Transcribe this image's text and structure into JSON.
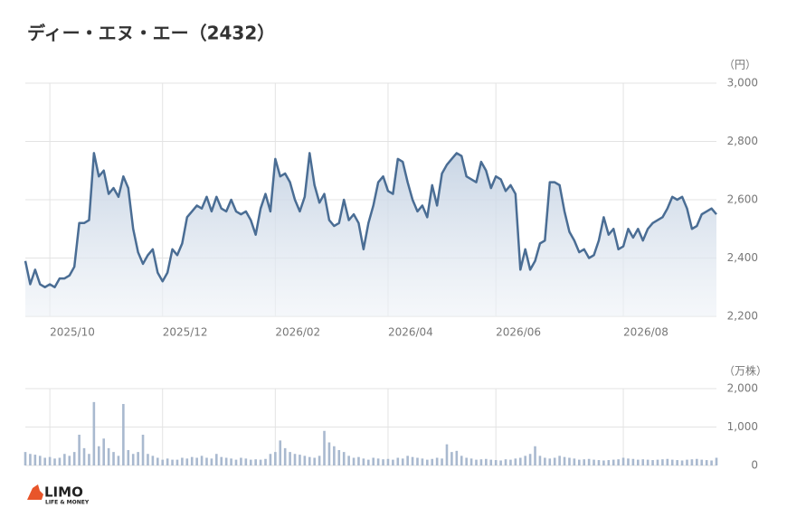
{
  "chart_data": [
    {
      "type": "line",
      "title": "ディー・エヌ・エー（2432）",
      "unit": "（円）",
      "color": "#4a6d94",
      "categories": [
        null,
        null,
        null,
        null,
        null,
        "2025/10",
        null,
        null,
        null,
        null,
        null,
        null,
        null,
        null,
        null,
        null,
        null,
        null,
        null,
        null,
        null,
        null,
        null,
        null,
        null,
        null,
        null,
        null,
        "2025/12",
        null,
        null,
        null,
        null,
        null,
        null,
        null,
        null,
        null,
        null,
        null,
        null,
        null,
        null,
        null,
        null,
        null,
        null,
        null,
        null,
        null,
        null,
        "2026/02",
        null,
        null,
        null,
        null,
        null,
        null,
        null,
        null,
        null,
        null,
        null,
        null,
        null,
        null,
        null,
        null,
        null,
        null,
        null,
        null,
        null,
        null,
        "2026/04",
        null,
        null,
        null,
        null,
        null,
        null,
        null,
        null,
        null,
        null,
        null,
        null,
        null,
        null,
        null,
        null,
        null,
        null,
        null,
        null,
        null,
        "2026/06",
        null,
        null,
        null,
        null,
        null,
        null,
        null,
        null,
        null,
        null,
        null,
        null,
        null,
        null,
        null,
        null,
        null,
        null,
        null,
        null,
        null,
        null,
        null,
        null,
        null,
        "2026/08",
        null,
        null,
        null,
        null,
        null,
        null,
        null,
        null,
        null,
        null,
        null,
        null,
        null,
        null,
        null,
        null,
        null,
        null,
        null
      ],
      "values": [
        2390,
        2310,
        2360,
        2310,
        2300,
        2310,
        2300,
        2330,
        2330,
        2340,
        2370,
        2520,
        2520,
        2530,
        2760,
        2680,
        2700,
        2620,
        2640,
        2610,
        2680,
        2640,
        2500,
        2420,
        2380,
        2410,
        2430,
        2350,
        2320,
        2350,
        2430,
        2410,
        2450,
        2540,
        2560,
        2580,
        2570,
        2610,
        2560,
        2610,
        2570,
        2560,
        2600,
        2560,
        2550,
        2560,
        2530,
        2480,
        2570,
        2620,
        2560,
        2740,
        2680,
        2690,
        2660,
        2600,
        2560,
        2610,
        2760,
        2650,
        2590,
        2620,
        2530,
        2510,
        2520,
        2600,
        2530,
        2550,
        2520,
        2430,
        2520,
        2580,
        2660,
        2680,
        2630,
        2620,
        2740,
        2730,
        2660,
        2600,
        2560,
        2580,
        2540,
        2650,
        2580,
        2690,
        2720,
        2740,
        2760,
        2750,
        2680,
        2670,
        2660,
        2730,
        2700,
        2640,
        2680,
        2670,
        2630,
        2650,
        2620,
        2360,
        2430,
        2360,
        2390,
        2450,
        2460,
        2660,
        2660,
        2650,
        2560,
        2490,
        2460,
        2420,
        2430,
        2400,
        2410,
        2460,
        2540,
        2480,
        2500,
        2430,
        2440,
        2500,
        2470,
        2500,
        2460,
        2500,
        2520,
        2530,
        2540,
        2570,
        2610,
        2600,
        2610,
        2570,
        2500,
        2510,
        2550,
        2560,
        2570,
        2550
      ],
      "ylim": [
        2200,
        3000
      ],
      "yticks": [
        {
          "value": 2200,
          "label": "2,200"
        },
        {
          "value": 2400,
          "label": "2,400"
        },
        {
          "value": 2600,
          "label": "2,600"
        },
        {
          "value": 2800,
          "label": "2,800"
        },
        {
          "value": 3000,
          "label": "3,000"
        }
      ],
      "grid": true
    },
    {
      "type": "bar",
      "unit": "（万株）",
      "color": "#a9b9cf",
      "values": [
        350,
        300,
        280,
        250,
        200,
        220,
        180,
        200,
        300,
        250,
        350,
        800,
        450,
        300,
        1650,
        500,
        700,
        450,
        350,
        250,
        1600,
        400,
        300,
        350,
        800,
        300,
        250,
        200,
        150,
        180,
        150,
        150,
        200,
        180,
        220,
        200,
        250,
        200,
        180,
        300,
        220,
        200,
        180,
        150,
        200,
        180,
        150,
        160,
        150,
        170,
        300,
        350,
        650,
        450,
        350,
        300,
        280,
        250,
        220,
        200,
        250,
        900,
        600,
        500,
        400,
        350,
        250,
        200,
        220,
        180,
        150,
        200,
        180,
        160,
        170,
        150,
        200,
        180,
        250,
        220,
        200,
        180,
        150,
        170,
        200,
        180,
        550,
        350,
        380,
        250,
        200,
        180,
        150,
        160,
        170,
        150,
        140,
        130,
        160,
        150,
        180,
        200,
        250,
        300,
        500,
        250,
        200,
        180,
        200,
        250,
        220,
        200,
        180,
        150,
        160,
        170,
        150,
        140,
        130,
        140,
        150,
        160,
        200,
        180,
        170,
        150,
        160,
        150,
        140,
        150,
        160,
        170,
        150,
        140,
        130,
        150,
        160,
        170,
        150,
        140,
        130,
        200
      ],
      "ylim": [
        0,
        2000
      ],
      "yticks": [
        0,
        {
          "value": 1000,
          "label": "1,000"
        },
        {
          "value": 2000,
          "label": "2,000"
        }
      ],
      "grid": true
    }
  ],
  "logo": {
    "name": "LIMO",
    "tagline": "LIFE & MONEY"
  }
}
